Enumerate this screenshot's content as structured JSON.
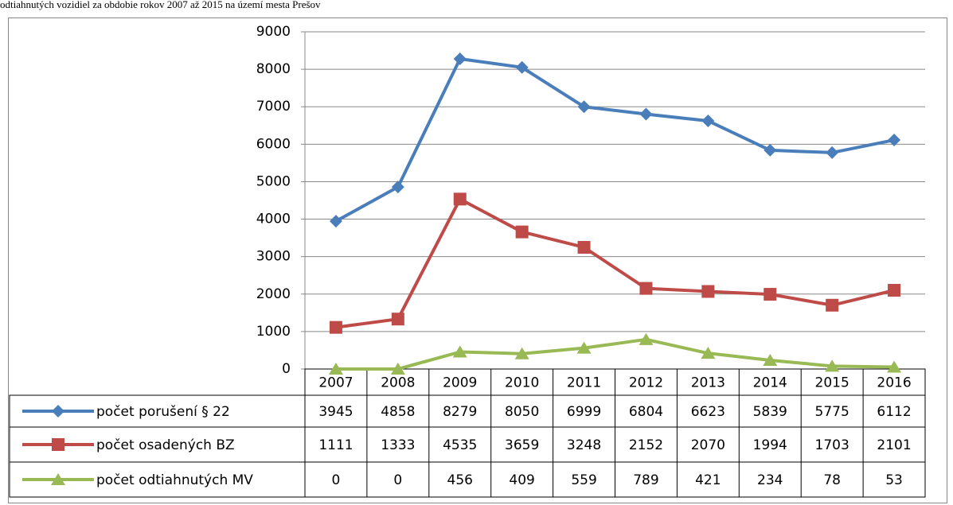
{
  "chart_data": {
    "type": "line",
    "title": "odtiahnutých vozidiel za obdobie rokov 2007 až 2015 na území mesta Prešov",
    "categories": [
      "2007",
      "2008",
      "2009",
      "2010",
      "2011",
      "2012",
      "2013",
      "2014",
      "2015",
      "2016"
    ],
    "series": [
      {
        "name": "počet porušení § 22",
        "color": "#4a7ebb",
        "marker": "diamond",
        "values": [
          3945,
          4858,
          8279,
          8050,
          6999,
          6804,
          6623,
          5839,
          5775,
          6112
        ]
      },
      {
        "name": "počet osadených BZ",
        "color": "#be4b48",
        "marker": "square",
        "values": [
          1111,
          1333,
          4535,
          3659,
          3248,
          2152,
          2070,
          1994,
          1703,
          2101
        ]
      },
      {
        "name": "počet odtiahnutých MV",
        "color": "#98b954",
        "marker": "triangle",
        "values": [
          0,
          0,
          456,
          409,
          559,
          789,
          421,
          234,
          78,
          53
        ]
      }
    ],
    "ylim": [
      0,
      9000
    ],
    "yticks": [
      0,
      1000,
      2000,
      3000,
      4000,
      5000,
      6000,
      7000,
      8000,
      9000
    ],
    "grid": true
  }
}
